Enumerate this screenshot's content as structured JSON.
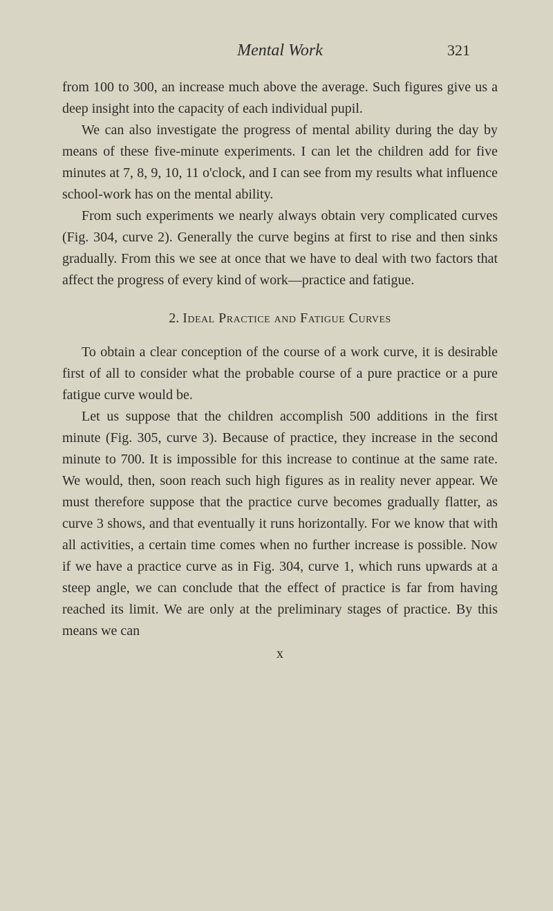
{
  "header": {
    "running_title": "Mental Work",
    "page_number": "321"
  },
  "paragraphs": {
    "p1": "from 100 to 300, an increase much above the average. Such figures give us a deep insight into the capacity of each individual pupil.",
    "p2": "We can also investigate the progress of mental ability during the day by means of these five-minute experiments. I can let the children add for five minutes at 7, 8, 9, 10, 11 o'clock, and I can see from my results what influence school-work has on the mental ability.",
    "p3": "From such experiments we nearly always obtain very complicated curves (Fig. 304, curve 2). Generally the curve begins at first to rise and then sinks gradually. From this we see at once that we have to deal with two factors that affect the progress of every kind of work—practice and fatigue.",
    "p4": "To obtain a clear conception of the course of a work curve, it is desirable first of all to consider what the probable course of a pure practice or a pure fatigue curve would be.",
    "p5": "Let us suppose that the children accomplish 500 additions in the first minute (Fig. 305, curve 3). Because of practice, they increase in the second minute to 700. It is impossible for this increase to continue at the same rate. We would, then, soon reach such high figures as in reality never appear. We must therefore suppose that the practice curve becomes gradually flatter, as curve 3 shows, and that eventually it runs horizontally. For we know that with all activities, a certain time comes when no further increase is possible. Now if we have a practice curve as in Fig. 304, curve 1, which runs upwards at a steep angle, we can conclude that the effect of practice is far from having reached its limit. We are only at the preliminary stages of practice. By this means we can"
  },
  "section_heading": {
    "number": "2.",
    "title": "Ideal Practice and Fatigue Curves"
  },
  "footer_marker": "x",
  "colors": {
    "background": "#d9d5c4",
    "text": "#2a2a28"
  },
  "typography": {
    "body_fontsize": 20,
    "heading_fontsize": 20,
    "title_fontsize": 24,
    "pagenum_fontsize": 22,
    "line_height": 1.55,
    "font_family": "Georgia, Times New Roman, serif"
  }
}
